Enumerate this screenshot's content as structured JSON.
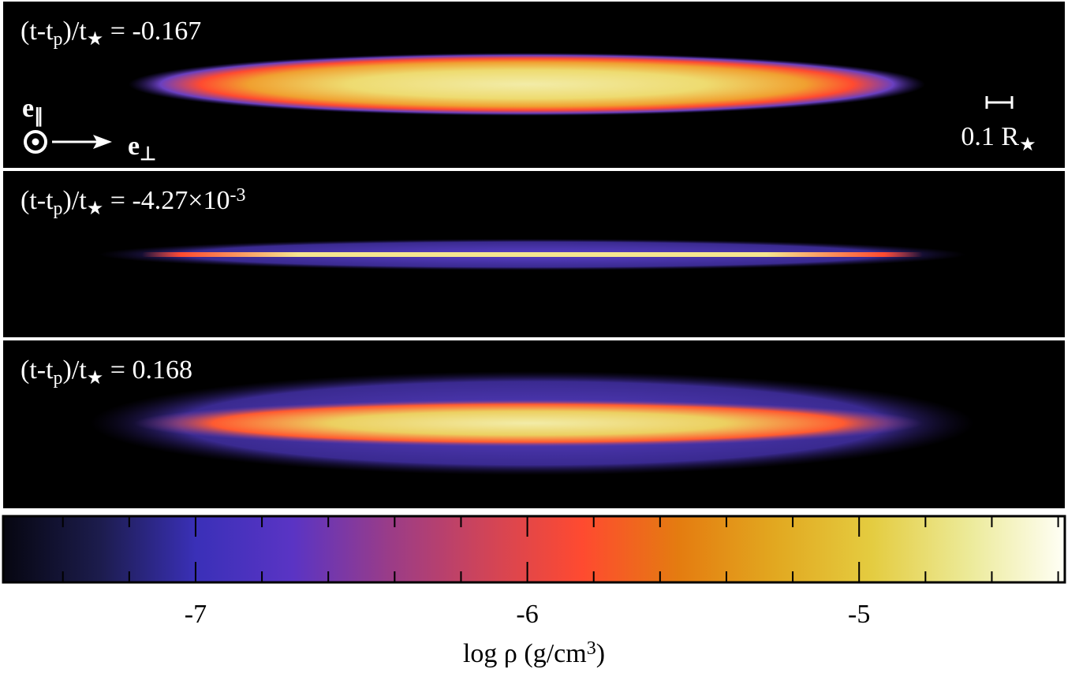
{
  "chart_data": {
    "type": "density-panels",
    "panels": [
      {
        "label": [
          {
            "text": "(t-t"
          },
          {
            "text": "p",
            "shift": "sub"
          },
          {
            "text": ")/t"
          },
          {
            "text": "★",
            "shift": "sub"
          },
          {
            "text": " = -0.167"
          }
        ]
      },
      {
        "label": [
          {
            "text": "(t-t"
          },
          {
            "text": "p",
            "shift": "sub"
          },
          {
            "text": ")/t"
          },
          {
            "text": "★",
            "shift": "sub"
          },
          {
            "text": " = -4.27×10"
          },
          {
            "text": "-3",
            "shift": "super"
          }
        ]
      },
      {
        "label": [
          {
            "text": "(t-t"
          },
          {
            "text": "p",
            "shift": "sub"
          },
          {
            "text": ")/t"
          },
          {
            "text": "★",
            "shift": "sub"
          },
          {
            "text": " = 0.168"
          }
        ]
      }
    ],
    "axis_parallel": [
      {
        "text": "e"
      },
      {
        "text": "∥",
        "shift": "sub"
      }
    ],
    "axis_perp": [
      {
        "text": "e"
      },
      {
        "text": "⊥",
        "shift": "sub"
      }
    ],
    "scale_bar": [
      {
        "text": "0.1 R"
      },
      {
        "text": "★",
        "shift": "sub"
      }
    ],
    "colorbar": {
      "label": [
        {
          "text": "log ρ (g/cm"
        },
        {
          "text": "3",
          "shift": "super"
        },
        {
          "text": ")"
        }
      ],
      "xlim": [
        -7.58,
        -4.38
      ],
      "xticks": [
        -7,
        -6,
        -5
      ],
      "minor_ticks": [
        -7.4,
        -7.2,
        -6.8,
        -6.6,
        -6.4,
        -6.2,
        -5.8,
        -5.6,
        -5.4,
        -5.2,
        -4.8,
        -4.6,
        -4.4
      ],
      "colormap": [
        "#060610",
        "#1c1c4c",
        "#3a30b8",
        "#5a34c4",
        "#9a3c88",
        "#d04458",
        "#ff4a30",
        "#e47c10",
        "#e2a820",
        "#e4cc40",
        "#ecea98",
        "#fffff6"
      ]
    }
  }
}
